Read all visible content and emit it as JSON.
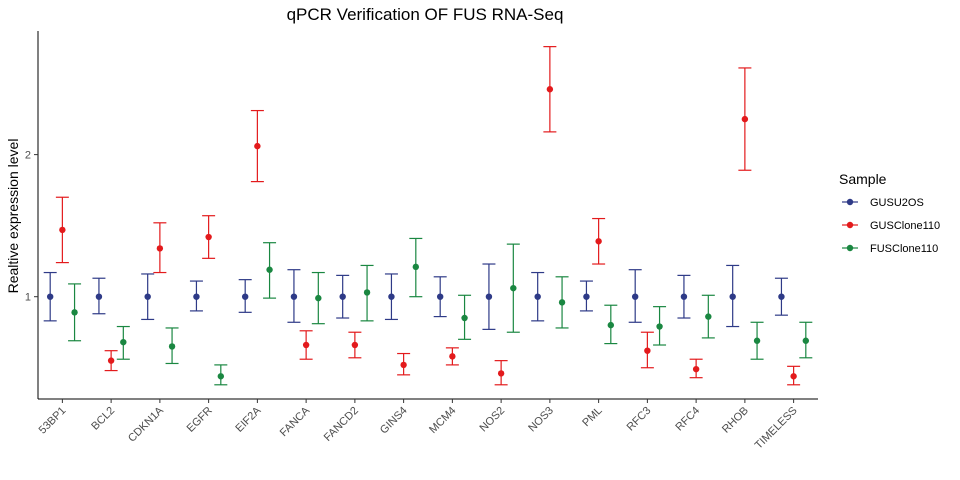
{
  "chart_data": {
    "type": "scatter",
    "title": "qPCR Verification OF FUS RNA-Seq",
    "xlabel": "",
    "ylabel": "Realtive expression level",
    "categories": [
      "53BP1",
      "BCL2",
      "CDKN1A",
      "EGFR",
      "EIF2A",
      "FANCA",
      "FANCD2",
      "GINS4",
      "MCM4",
      "NOS2",
      "NOS3",
      "PML",
      "RFC3",
      "RFC4",
      "RHOB",
      "TIMELESS"
    ],
    "y_ticks": [
      1,
      2
    ],
    "y_tick_labels": [
      "1",
      "2"
    ],
    "ylim": [
      0.28,
      2.87
    ],
    "grid": false,
    "legend": {
      "title": "Sample",
      "position": "right"
    },
    "series": [
      {
        "name": "GUSU2OS",
        "color": "#2e3a87",
        "values": [
          1.0,
          1.0,
          1.0,
          1.0,
          1.0,
          1.0,
          1.0,
          1.0,
          1.0,
          1.0,
          1.0,
          1.0,
          1.0,
          1.0,
          1.0,
          1.0
        ],
        "lower": [
          0.83,
          0.88,
          0.84,
          0.9,
          0.89,
          0.82,
          0.85,
          0.84,
          0.86,
          0.77,
          0.83,
          0.9,
          0.82,
          0.85,
          0.79,
          0.87
        ],
        "upper": [
          1.17,
          1.13,
          1.16,
          1.11,
          1.12,
          1.19,
          1.15,
          1.16,
          1.14,
          1.23,
          1.17,
          1.11,
          1.19,
          1.15,
          1.22,
          1.13
        ]
      },
      {
        "name": "GUSClone110",
        "color": "#e31a1c",
        "values": [
          1.47,
          0.55,
          1.34,
          1.42,
          2.06,
          0.66,
          0.66,
          0.52,
          0.58,
          0.46,
          2.46,
          1.39,
          0.62,
          0.49,
          2.25,
          0.44
        ],
        "lower": [
          1.24,
          0.48,
          1.17,
          1.27,
          1.81,
          0.56,
          0.57,
          0.45,
          0.52,
          0.38,
          2.16,
          1.23,
          0.5,
          0.43,
          1.89,
          0.38
        ],
        "upper": [
          1.7,
          0.62,
          1.52,
          1.57,
          2.31,
          0.76,
          0.75,
          0.6,
          0.64,
          0.55,
          2.76,
          1.55,
          0.75,
          0.56,
          2.61,
          0.51
        ]
      },
      {
        "name": "FUSClone110",
        "color": "#1a8741",
        "values": [
          0.89,
          0.68,
          0.65,
          0.44,
          1.19,
          0.99,
          1.03,
          1.21,
          0.85,
          1.06,
          0.96,
          0.8,
          0.79,
          0.86,
          0.69,
          0.69
        ],
        "lower": [
          0.69,
          0.56,
          0.53,
          0.38,
          0.99,
          0.81,
          0.83,
          1.0,
          0.7,
          0.75,
          0.78,
          0.67,
          0.66,
          0.71,
          0.56,
          0.57
        ],
        "upper": [
          1.09,
          0.79,
          0.78,
          0.52,
          1.38,
          1.17,
          1.22,
          1.41,
          1.01,
          1.37,
          1.14,
          0.94,
          0.93,
          1.01,
          0.82,
          0.82
        ]
      }
    ]
  }
}
